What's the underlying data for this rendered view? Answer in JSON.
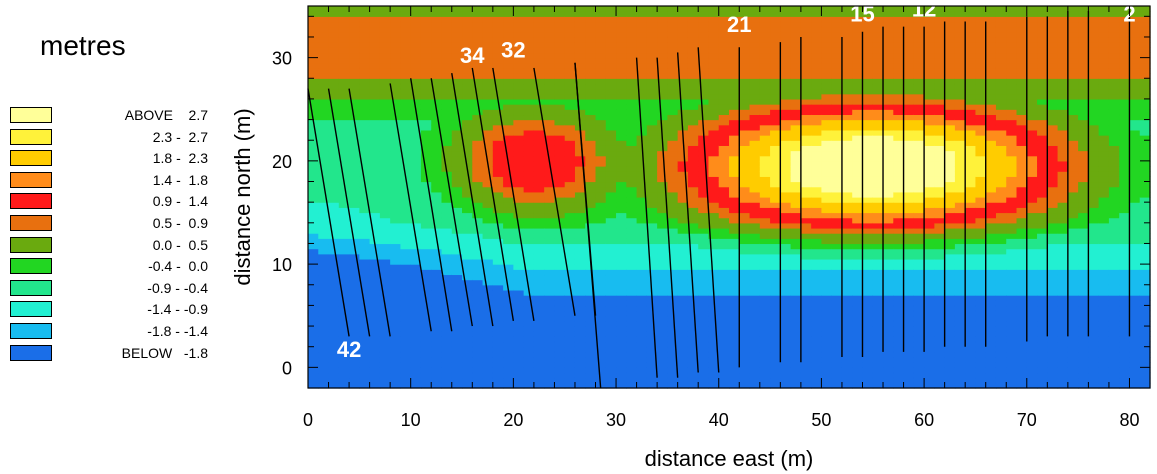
{
  "legend": {
    "title": "metres",
    "items": [
      {
        "label": "ABOVE    2.7",
        "color": "#ffff99"
      },
      {
        "label": "2.3 -  2.7",
        "color": "#fff23a"
      },
      {
        "label": "1.8 -  2.3",
        "color": "#ffcc00"
      },
      {
        "label": "1.4 -  1.8",
        "color": "#ff8c1a"
      },
      {
        "label": "0.9 -  1.4",
        "color": "#ff1a1a"
      },
      {
        "label": "0.5 -  0.9",
        "color": "#e8700f"
      },
      {
        "label": "0.0 -  0.5",
        "color": "#6aaa0f"
      },
      {
        "label": "-0.4 -  0.0",
        "color": "#22d622"
      },
      {
        "label": "-0.9 - -0.4",
        "color": "#22e68c"
      },
      {
        "label": "-1.4 - -0.9",
        "color": "#22f0d2"
      },
      {
        "label": "-1.8 - -1.4",
        "color": "#18bcf0"
      },
      {
        "label": "BELOW   -1.8",
        "color": "#1a6ee8"
      }
    ]
  },
  "chart_data": {
    "type": "heatmap",
    "title": "",
    "xlabel": "distance east (m)",
    "ylabel": "distance north (m)",
    "xlim": [
      0,
      82
    ],
    "ylim": [
      -2,
      35
    ],
    "x_ticks": [
      0,
      10,
      20,
      30,
      40,
      50,
      60,
      70,
      80
    ],
    "y_ticks": [
      0,
      10,
      20,
      30
    ],
    "contour_levels": [
      -1.8,
      -1.4,
      -0.9,
      -0.4,
      0.0,
      0.5,
      0.9,
      1.4,
      1.8,
      2.3,
      2.7
    ],
    "grid": false,
    "survey_lines": [
      {
        "x_top": 0,
        "y_top": 27,
        "x_bot": 4,
        "y_bot": 3
      },
      {
        "x_top": 2,
        "y_top": 27,
        "x_bot": 6,
        "y_bot": 3
      },
      {
        "x_top": 4,
        "y_top": 27,
        "x_bot": 8,
        "y_bot": 3
      },
      {
        "x_top": 8,
        "y_top": 27.5,
        "x_bot": 12,
        "y_bot": 3.5
      },
      {
        "x_top": 10,
        "y_top": 28,
        "x_bot": 14,
        "y_bot": 3.5
      },
      {
        "x_top": 12,
        "y_top": 28,
        "x_bot": 16,
        "y_bot": 4
      },
      {
        "x_top": 14,
        "y_top": 28.5,
        "x_bot": 18,
        "y_bot": 4
      },
      {
        "x_top": 16,
        "y_top": 29,
        "x_bot": 20,
        "y_bot": 4.5
      },
      {
        "x_top": 18,
        "y_top": 29,
        "x_bot": 22,
        "y_bot": 4.5
      },
      {
        "x_top": 22,
        "y_top": 29,
        "x_bot": 26,
        "y_bot": 5
      },
      {
        "x_top": 26,
        "y_top": 29.5,
        "x_bot": 28,
        "y_bot": 5
      },
      {
        "x_top": 26,
        "y_top": 29.5,
        "x_bot": 28.5,
        "y_bot": -2
      },
      {
        "x_top": 32,
        "y_top": 30,
        "x_bot": 34,
        "y_bot": -1
      },
      {
        "x_top": 34,
        "y_top": 30,
        "x_bot": 36,
        "y_bot": -1
      },
      {
        "x_top": 36,
        "y_top": 30.5,
        "x_bot": 38,
        "y_bot": -0.5
      },
      {
        "x_top": 38,
        "y_top": 31,
        "x_bot": 40,
        "y_bot": -0.5
      },
      {
        "x_top": 42,
        "y_top": 31,
        "x_bot": 42,
        "y_bot": 0
      },
      {
        "x_top": 46,
        "y_top": 31.5,
        "x_bot": 46,
        "y_bot": 0.5
      },
      {
        "x_top": 48,
        "y_top": 32,
        "x_bot": 48,
        "y_bot": 0.5
      },
      {
        "x_top": 52,
        "y_top": 32,
        "x_bot": 52,
        "y_bot": 1
      },
      {
        "x_top": 54,
        "y_top": 32.5,
        "x_bot": 54,
        "y_bot": 1
      },
      {
        "x_top": 56,
        "y_top": 33,
        "x_bot": 56,
        "y_bot": 1.5
      },
      {
        "x_top": 58,
        "y_top": 33,
        "x_bot": 58,
        "y_bot": 1.5
      },
      {
        "x_top": 60,
        "y_top": 33,
        "x_bot": 60,
        "y_bot": 1.5
      },
      {
        "x_top": 62,
        "y_top": 33.5,
        "x_bot": 62,
        "y_bot": 2
      },
      {
        "x_top": 64,
        "y_top": 33.5,
        "x_bot": 64,
        "y_bot": 2
      },
      {
        "x_top": 66,
        "y_top": 33.5,
        "x_bot": 66,
        "y_bot": 2
      },
      {
        "x_top": 70,
        "y_top": 34,
        "x_bot": 70,
        "y_bot": 2.5
      },
      {
        "x_top": 72,
        "y_top": 34,
        "x_bot": 72,
        "y_bot": 3
      },
      {
        "x_top": 74,
        "y_top": 34.5,
        "x_bot": 74,
        "y_bot": 3
      },
      {
        "x_top": 76,
        "y_top": 34.5,
        "x_bot": 76,
        "y_bot": 3
      },
      {
        "x_top": 80,
        "y_top": 34.5,
        "x_bot": 80,
        "y_bot": 3
      }
    ],
    "line_labels": [
      {
        "text": "42",
        "x": 4,
        "y": 1
      },
      {
        "text": "34",
        "x": 16,
        "y": 29.5
      },
      {
        "text": "32",
        "x": 20,
        "y": 30
      },
      {
        "text": "21",
        "x": 42,
        "y": 32.5
      },
      {
        "text": "15",
        "x": 54,
        "y": 33.5
      },
      {
        "text": "12",
        "x": 60,
        "y": 34
      },
      {
        "text": "2",
        "x": 80,
        "y": 33.5
      }
    ]
  }
}
